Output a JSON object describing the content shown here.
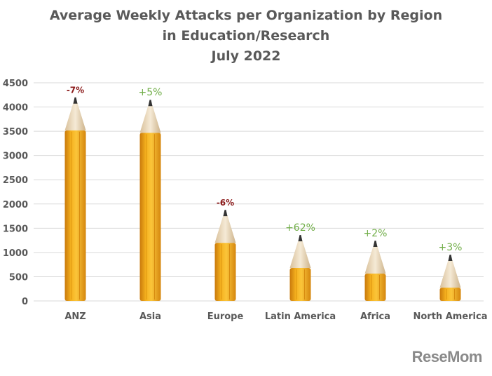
{
  "chart_data": {
    "type": "bar",
    "title_lines": [
      "Average Weekly Attacks per Organization by Region",
      "in Education/Research",
      "July 2022"
    ],
    "categories": [
      "ANZ",
      "Asia",
      "Europe",
      "Latin America",
      "Africa",
      "North America"
    ],
    "values": [
      4200,
      4150,
      1880,
      1360,
      1245,
      955
    ],
    "data_labels": [
      "-7%",
      "+5%",
      "-6%",
      "+62%",
      "+2%",
      "+3%"
    ],
    "label_colors": [
      "#8b1a1a",
      "#70ad47",
      "#8b1a1a",
      "#70ad47",
      "#70ad47",
      "#70ad47"
    ],
    "ylim": [
      0,
      4500
    ],
    "yticks": [
      0,
      500,
      1000,
      1500,
      2000,
      2500,
      3000,
      3500,
      4000,
      4500
    ],
    "grid": true,
    "bar_style": "pencil",
    "colors": {
      "pencil_body": "#f0a81c",
      "pencil_wood": "#ecd9b8",
      "pencil_lead": "#333333",
      "grid": "#d9d9d9",
      "text": "#595959"
    }
  },
  "watermark": "ReseMom"
}
